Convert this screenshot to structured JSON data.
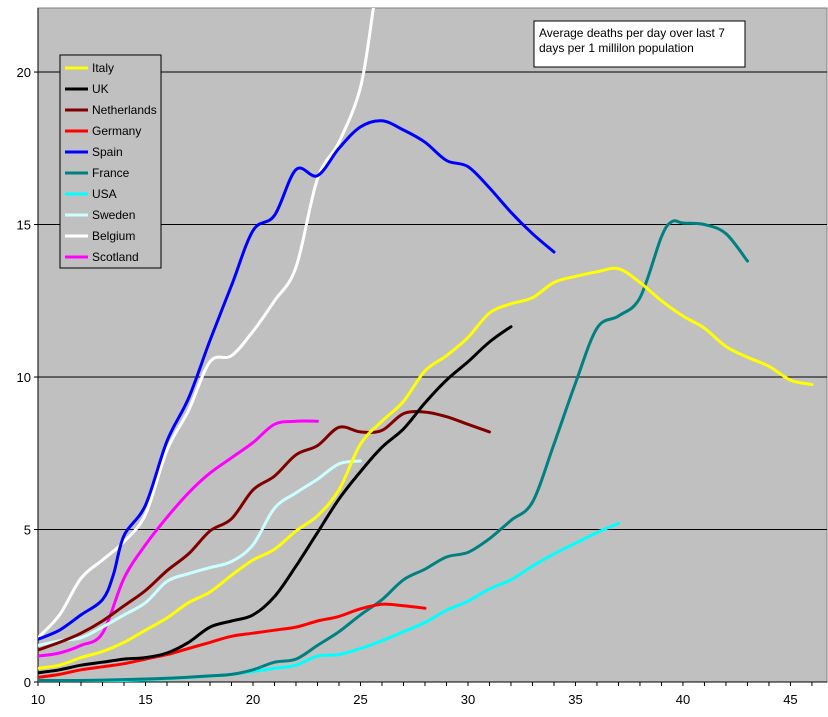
{
  "chart_data": {
    "type": "line",
    "title": "",
    "xlabel": "",
    "ylabel": "",
    "xlim": [
      10,
      46.7
    ],
    "ylim": [
      0,
      22.1
    ],
    "x_ticks": [
      10,
      15,
      20,
      25,
      30,
      35,
      40,
      45
    ],
    "y_ticks": [
      0,
      5,
      10,
      15,
      20
    ],
    "grid": "horizontal",
    "legend_position": "top-left",
    "annotation": [
      "Average deaths per day over last 7",
      "days per 1 millilon population"
    ],
    "background": "#c0c0c0",
    "series": [
      {
        "name": "Italy",
        "color": "#ffff00",
        "points": [
          [
            10,
            0.45
          ],
          [
            11,
            0.55
          ],
          [
            12,
            0.8
          ],
          [
            13,
            1.0
          ],
          [
            14,
            1.3
          ],
          [
            15,
            1.7
          ],
          [
            16,
            2.1
          ],
          [
            17,
            2.6
          ],
          [
            18,
            2.95
          ],
          [
            19,
            3.5
          ],
          [
            20,
            4.0
          ],
          [
            21,
            4.35
          ],
          [
            22,
            4.95
          ],
          [
            23,
            5.45
          ],
          [
            24,
            6.3
          ],
          [
            25,
            7.8
          ],
          [
            26,
            8.55
          ],
          [
            27,
            9.2
          ],
          [
            28,
            10.2
          ],
          [
            29,
            10.7
          ],
          [
            30,
            11.3
          ],
          [
            31,
            12.1
          ],
          [
            32,
            12.4
          ],
          [
            33,
            12.6
          ],
          [
            34,
            13.1
          ],
          [
            35,
            13.3
          ],
          [
            36,
            13.45
          ],
          [
            37,
            13.55
          ],
          [
            38,
            13.1
          ],
          [
            39,
            12.5
          ],
          [
            40,
            12.0
          ],
          [
            41,
            11.6
          ],
          [
            42,
            11.0
          ],
          [
            43,
            10.65
          ],
          [
            44,
            10.35
          ],
          [
            45,
            9.9
          ],
          [
            46,
            9.75
          ]
        ]
      },
      {
        "name": "UK",
        "color": "#000000",
        "points": [
          [
            10,
            0.3
          ],
          [
            11,
            0.4
          ],
          [
            12,
            0.55
          ],
          [
            13,
            0.65
          ],
          [
            14,
            0.75
          ],
          [
            15,
            0.8
          ],
          [
            16,
            0.95
          ],
          [
            17,
            1.3
          ],
          [
            18,
            1.8
          ],
          [
            19,
            2.0
          ],
          [
            20,
            2.2
          ],
          [
            21,
            2.8
          ],
          [
            22,
            3.8
          ],
          [
            23,
            4.9
          ],
          [
            24,
            6.0
          ],
          [
            25,
            6.9
          ],
          [
            26,
            7.7
          ],
          [
            27,
            8.3
          ],
          [
            28,
            9.15
          ],
          [
            29,
            9.9
          ],
          [
            30,
            10.5
          ],
          [
            31,
            11.15
          ],
          [
            32,
            11.65
          ]
        ]
      },
      {
        "name": "Netherlands",
        "color": "#800000",
        "points": [
          [
            10,
            1.05
          ],
          [
            11,
            1.3
          ],
          [
            12,
            1.6
          ],
          [
            13,
            2.0
          ],
          [
            14,
            2.5
          ],
          [
            15,
            3.0
          ],
          [
            16,
            3.65
          ],
          [
            17,
            4.2
          ],
          [
            18,
            4.95
          ],
          [
            19,
            5.35
          ],
          [
            20,
            6.3
          ],
          [
            21,
            6.75
          ],
          [
            22,
            7.45
          ],
          [
            23,
            7.75
          ],
          [
            24,
            8.35
          ],
          [
            25,
            8.2
          ],
          [
            26,
            8.25
          ],
          [
            27,
            8.8
          ],
          [
            28,
            8.85
          ],
          [
            29,
            8.7
          ],
          [
            30,
            8.45
          ],
          [
            31,
            8.2
          ]
        ]
      },
      {
        "name": "Germany",
        "color": "#ff0000",
        "points": [
          [
            10,
            0.15
          ],
          [
            11,
            0.25
          ],
          [
            12,
            0.4
          ],
          [
            13,
            0.5
          ],
          [
            14,
            0.6
          ],
          [
            15,
            0.75
          ],
          [
            16,
            0.9
          ],
          [
            17,
            1.1
          ],
          [
            18,
            1.3
          ],
          [
            19,
            1.5
          ],
          [
            20,
            1.6
          ],
          [
            21,
            1.7
          ],
          [
            22,
            1.8
          ],
          [
            23,
            2.0
          ],
          [
            24,
            2.15
          ],
          [
            25,
            2.4
          ],
          [
            26,
            2.55
          ],
          [
            27,
            2.5
          ],
          [
            28,
            2.42
          ]
        ]
      },
      {
        "name": "Spain",
        "color": "#0000ff",
        "points": [
          [
            10,
            1.4
          ],
          [
            11,
            1.7
          ],
          [
            12,
            2.2
          ],
          [
            13,
            2.7
          ],
          [
            13.5,
            3.5
          ],
          [
            14,
            4.8
          ],
          [
            15,
            5.8
          ],
          [
            16,
            7.9
          ],
          [
            17,
            9.3
          ],
          [
            18,
            11.2
          ],
          [
            19,
            13.0
          ],
          [
            20,
            14.8
          ],
          [
            21,
            15.3
          ],
          [
            22,
            16.8
          ],
          [
            23,
            16.6
          ],
          [
            24,
            17.5
          ],
          [
            25,
            18.2
          ],
          [
            26,
            18.4
          ],
          [
            27,
            18.1
          ],
          [
            28,
            17.7
          ],
          [
            29,
            17.1
          ],
          [
            30,
            16.9
          ],
          [
            31,
            16.2
          ],
          [
            32,
            15.4
          ],
          [
            33,
            14.7
          ],
          [
            34,
            14.1
          ]
        ]
      },
      {
        "name": "France",
        "color": "#008080",
        "points": [
          [
            10,
            0.05
          ],
          [
            12,
            0.05
          ],
          [
            14,
            0.08
          ],
          [
            16,
            0.12
          ],
          [
            18,
            0.2
          ],
          [
            19,
            0.25
          ],
          [
            20,
            0.4
          ],
          [
            21,
            0.65
          ],
          [
            22,
            0.75
          ],
          [
            23,
            1.2
          ],
          [
            24,
            1.65
          ],
          [
            25,
            2.2
          ],
          [
            26,
            2.7
          ],
          [
            27,
            3.35
          ],
          [
            28,
            3.7
          ],
          [
            29,
            4.1
          ],
          [
            30,
            4.25
          ],
          [
            31,
            4.7
          ],
          [
            32,
            5.3
          ],
          [
            33,
            5.9
          ],
          [
            34,
            7.8
          ],
          [
            35,
            9.8
          ],
          [
            36,
            11.6
          ],
          [
            37,
            12.0
          ],
          [
            38,
            12.6
          ],
          [
            39,
            14.6
          ],
          [
            39.5,
            15.1
          ],
          [
            40,
            15.05
          ],
          [
            41,
            15.0
          ],
          [
            42,
            14.7
          ],
          [
            43,
            13.8
          ]
        ]
      },
      {
        "name": "USA",
        "color": "#00ffff",
        "points": [
          [
            10,
            0.02
          ],
          [
            14,
            0.05
          ],
          [
            17,
            0.15
          ],
          [
            19,
            0.25
          ],
          [
            21,
            0.45
          ],
          [
            22,
            0.55
          ],
          [
            23,
            0.85
          ],
          [
            24,
            0.9
          ],
          [
            25,
            1.1
          ],
          [
            26,
            1.35
          ],
          [
            27,
            1.65
          ],
          [
            28,
            1.95
          ],
          [
            29,
            2.35
          ],
          [
            30,
            2.65
          ],
          [
            31,
            3.05
          ],
          [
            32,
            3.35
          ],
          [
            33,
            3.8
          ],
          [
            34,
            4.2
          ],
          [
            35,
            4.55
          ],
          [
            36,
            4.9
          ],
          [
            37,
            5.2
          ]
        ]
      },
      {
        "name": "Sweden",
        "color": "#ccffff",
        "points": [
          [
            10,
            1.2
          ],
          [
            11,
            1.35
          ],
          [
            12,
            1.45
          ],
          [
            13,
            1.8
          ],
          [
            14,
            2.2
          ],
          [
            15,
            2.6
          ],
          [
            16,
            3.3
          ],
          [
            17,
            3.55
          ],
          [
            18,
            3.75
          ],
          [
            19,
            3.95
          ],
          [
            20,
            4.5
          ],
          [
            21,
            5.7
          ],
          [
            22,
            6.2
          ],
          [
            23,
            6.65
          ],
          [
            24,
            7.15
          ],
          [
            25,
            7.25
          ]
        ]
      },
      {
        "name": "Belgium",
        "color": "#ffffff",
        "points": [
          [
            10,
            1.45
          ],
          [
            11,
            2.2
          ],
          [
            12,
            3.4
          ],
          [
            13,
            4.0
          ],
          [
            14,
            4.6
          ],
          [
            15,
            5.5
          ],
          [
            16,
            7.6
          ],
          [
            17,
            8.9
          ],
          [
            18,
            10.5
          ],
          [
            19,
            10.7
          ],
          [
            20,
            11.5
          ],
          [
            21,
            12.5
          ],
          [
            22,
            13.6
          ],
          [
            23,
            16.5
          ],
          [
            24,
            17.7
          ],
          [
            25,
            19.5
          ],
          [
            25.6,
            22.1
          ]
        ]
      },
      {
        "name": "Scotland",
        "color": "#ff00ff",
        "points": [
          [
            10,
            0.85
          ],
          [
            11,
            0.95
          ],
          [
            12,
            1.2
          ],
          [
            13,
            1.6
          ],
          [
            14,
            3.4
          ],
          [
            15,
            4.5
          ],
          [
            16,
            5.4
          ],
          [
            17,
            6.2
          ],
          [
            18,
            6.85
          ],
          [
            19,
            7.35
          ],
          [
            20,
            7.85
          ],
          [
            21,
            8.45
          ],
          [
            22,
            8.55
          ],
          [
            23,
            8.55
          ]
        ]
      }
    ]
  }
}
